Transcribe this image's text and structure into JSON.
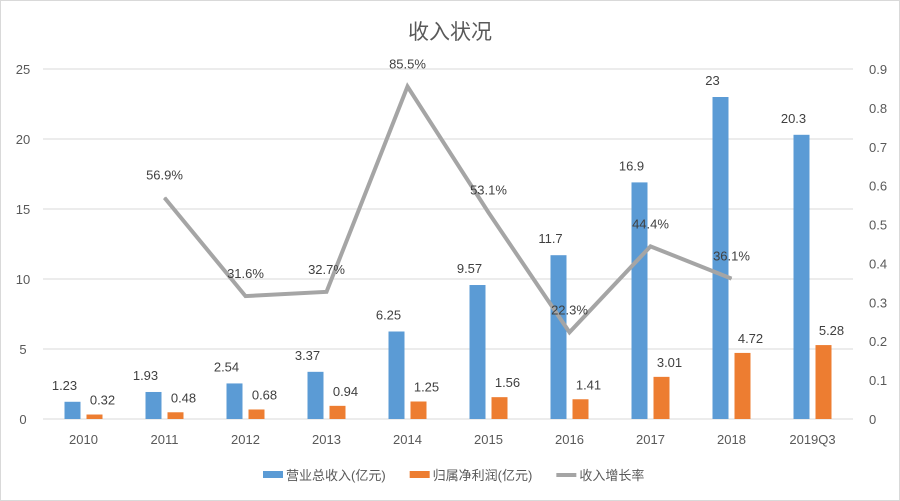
{
  "chart_data": {
    "type": "bar+line",
    "title": "收入状况",
    "categories": [
      "2010",
      "2011",
      "2012",
      "2013",
      "2014",
      "2015",
      "2016",
      "2017",
      "2018",
      "2019Q3"
    ],
    "series": [
      {
        "name": "营业总收入(亿元)",
        "type": "bar",
        "axis": "left",
        "color": "#5b9bd5",
        "values": [
          1.23,
          1.93,
          2.54,
          3.37,
          6.25,
          9.57,
          11.7,
          16.9,
          23,
          20.3
        ],
        "labels": [
          "1.23",
          "1.93",
          "2.54",
          "3.37",
          "6.25",
          "9.57",
          "11.7",
          "16.9",
          "23",
          "20.3"
        ]
      },
      {
        "name": "归属净利润(亿元)",
        "type": "bar",
        "axis": "left",
        "color": "#ed7d31",
        "values": [
          0.32,
          0.48,
          0.68,
          0.94,
          1.25,
          1.56,
          1.41,
          3.01,
          4.72,
          5.28
        ],
        "labels": [
          "0.32",
          "0.48",
          "0.68",
          "0.94",
          "1.25",
          "1.56",
          "1.41",
          "3.01",
          "4.72",
          "5.28"
        ]
      },
      {
        "name": "收入增长率",
        "type": "line",
        "axis": "right",
        "color": "#a5a5a5",
        "values": [
          null,
          0.569,
          0.316,
          0.327,
          0.855,
          0.531,
          0.223,
          0.444,
          0.361,
          null
        ],
        "labels": [
          null,
          "56.9%",
          "31.6%",
          "32.7%",
          "85.5%",
          "53.1%",
          "22.3%",
          "44.4%",
          "36.1%",
          null
        ]
      }
    ],
    "y_left": {
      "range": [
        0,
        25
      ],
      "ticks": [
        "0",
        "5",
        "10",
        "15",
        "20",
        "25"
      ]
    },
    "y_right": {
      "range": [
        0,
        0.9
      ],
      "ticks": [
        "0",
        "0.1",
        "0.2",
        "0.3",
        "0.4",
        "0.5",
        "0.6",
        "0.7",
        "0.8",
        "0.9"
      ]
    },
    "grid": true,
    "legend": "bottom"
  }
}
